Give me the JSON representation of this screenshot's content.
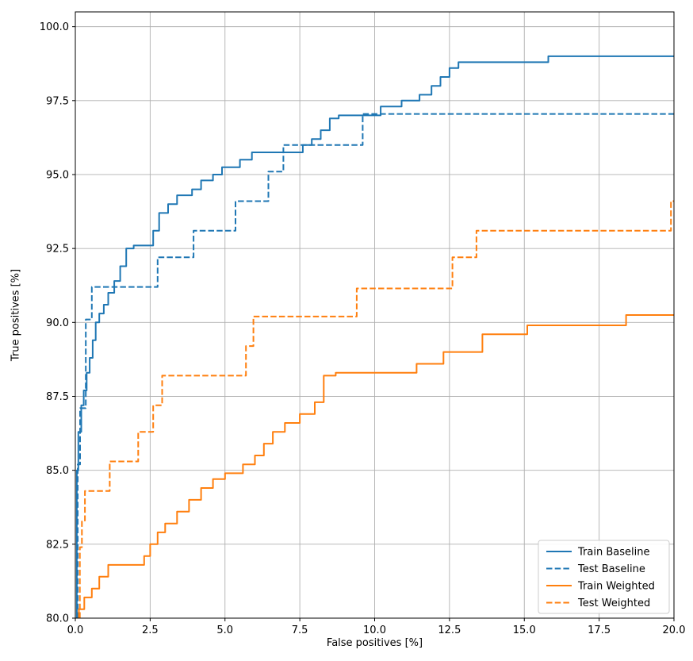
{
  "chart_data": {
    "type": "line",
    "title": "",
    "xlabel": "False positives [%]",
    "ylabel": "True positives [%]",
    "xlim": [
      0,
      20
    ],
    "ylim": [
      80,
      100.5
    ],
    "grid": true,
    "legend_position": "lower right",
    "xticks": [
      0,
      2.5,
      5,
      7.5,
      10,
      12.5,
      15,
      17.5,
      20
    ],
    "xtick_labels": [
      "0.0",
      "2.5",
      "5.0",
      "7.5",
      "10.0",
      "12.5",
      "15.0",
      "17.5",
      "20.0"
    ],
    "yticks": [
      80,
      82.5,
      85,
      87.5,
      90,
      92.5,
      95,
      97.5,
      100
    ],
    "ytick_labels": [
      "80.0",
      "82.5",
      "85.0",
      "87.5",
      "90.0",
      "92.5",
      "95.0",
      "97.5",
      "100.0"
    ],
    "colors": {
      "baseline": "#1f77b4",
      "weighted": "#ff7f0e",
      "grid": "#b0b0b0",
      "spine": "#000000",
      "legend_edge": "#cccccc"
    },
    "series": [
      {
        "name": "Train Baseline",
        "color": "#1f77b4",
        "dash": "solid",
        "points": [
          [
            0.05,
            80
          ],
          [
            0.05,
            85.0
          ],
          [
            0.1,
            85.0
          ],
          [
            0.1,
            86.3
          ],
          [
            0.2,
            86.3
          ],
          [
            0.2,
            87.2
          ],
          [
            0.28,
            87.2
          ],
          [
            0.28,
            87.7
          ],
          [
            0.38,
            87.7
          ],
          [
            0.38,
            88.3
          ],
          [
            0.48,
            88.3
          ],
          [
            0.48,
            88.8
          ],
          [
            0.58,
            88.8
          ],
          [
            0.58,
            89.4
          ],
          [
            0.68,
            89.4
          ],
          [
            0.68,
            90.0
          ],
          [
            0.8,
            90.0
          ],
          [
            0.8,
            90.3
          ],
          [
            0.95,
            90.3
          ],
          [
            0.95,
            90.6
          ],
          [
            1.1,
            90.6
          ],
          [
            1.1,
            91.0
          ],
          [
            1.3,
            91.0
          ],
          [
            1.3,
            91.4
          ],
          [
            1.5,
            91.4
          ],
          [
            1.5,
            91.9
          ],
          [
            1.7,
            91.9
          ],
          [
            1.7,
            92.5
          ],
          [
            1.95,
            92.5
          ],
          [
            1.95,
            92.6
          ],
          [
            2.6,
            92.6
          ],
          [
            2.6,
            93.1
          ],
          [
            2.8,
            93.1
          ],
          [
            2.8,
            93.7
          ],
          [
            3.1,
            93.7
          ],
          [
            3.1,
            94.0
          ],
          [
            3.4,
            94.0
          ],
          [
            3.4,
            94.3
          ],
          [
            3.9,
            94.3
          ],
          [
            3.9,
            94.5
          ],
          [
            4.2,
            94.5
          ],
          [
            4.2,
            94.8
          ],
          [
            4.6,
            94.8
          ],
          [
            4.6,
            95.0
          ],
          [
            4.9,
            95.0
          ],
          [
            4.9,
            95.25
          ],
          [
            5.5,
            95.25
          ],
          [
            5.5,
            95.5
          ],
          [
            5.9,
            95.5
          ],
          [
            5.9,
            95.75
          ],
          [
            7.6,
            95.75
          ],
          [
            7.6,
            96.0
          ],
          [
            7.9,
            96.0
          ],
          [
            7.9,
            96.2
          ],
          [
            8.2,
            96.2
          ],
          [
            8.2,
            96.5
          ],
          [
            8.5,
            96.5
          ],
          [
            8.5,
            96.9
          ],
          [
            8.8,
            96.9
          ],
          [
            8.8,
            97.0
          ],
          [
            10.2,
            97.0
          ],
          [
            10.2,
            97.3
          ],
          [
            10.9,
            97.3
          ],
          [
            10.9,
            97.5
          ],
          [
            11.5,
            97.5
          ],
          [
            11.5,
            97.7
          ],
          [
            11.9,
            97.7
          ],
          [
            11.9,
            98.0
          ],
          [
            12.2,
            98.0
          ],
          [
            12.2,
            98.3
          ],
          [
            12.5,
            98.3
          ],
          [
            12.5,
            98.6
          ],
          [
            12.8,
            98.6
          ],
          [
            12.8,
            98.8
          ],
          [
            15.8,
            98.8
          ],
          [
            15.8,
            99.0
          ],
          [
            20,
            99.0
          ]
        ]
      },
      {
        "name": "Test Baseline",
        "color": "#1f77b4",
        "dash": "dashed",
        "points": [
          [
            0.08,
            80
          ],
          [
            0.08,
            85.2
          ],
          [
            0.16,
            85.2
          ],
          [
            0.16,
            87.1
          ],
          [
            0.35,
            87.1
          ],
          [
            0.35,
            90.1
          ],
          [
            0.55,
            90.1
          ],
          [
            0.55,
            91.2
          ],
          [
            2.75,
            91.2
          ],
          [
            2.75,
            92.2
          ],
          [
            3.95,
            92.2
          ],
          [
            3.95,
            93.1
          ],
          [
            5.35,
            93.1
          ],
          [
            5.35,
            94.1
          ],
          [
            6.45,
            94.1
          ],
          [
            6.45,
            95.1
          ],
          [
            6.95,
            95.1
          ],
          [
            6.95,
            96.0
          ],
          [
            9.6,
            96.0
          ],
          [
            9.6,
            97.05
          ],
          [
            20,
            97.05
          ]
        ]
      },
      {
        "name": "Train Weighted",
        "color": "#ff7f0e",
        "dash": "solid",
        "points": [
          [
            0.12,
            80
          ],
          [
            0.12,
            80.3
          ],
          [
            0.3,
            80.3
          ],
          [
            0.3,
            80.7
          ],
          [
            0.55,
            80.7
          ],
          [
            0.55,
            81.0
          ],
          [
            0.8,
            81.0
          ],
          [
            0.8,
            81.4
          ],
          [
            1.1,
            81.4
          ],
          [
            1.1,
            81.8
          ],
          [
            2.3,
            81.8
          ],
          [
            2.3,
            82.1
          ],
          [
            2.5,
            82.1
          ],
          [
            2.5,
            82.5
          ],
          [
            2.75,
            82.5
          ],
          [
            2.75,
            82.9
          ],
          [
            3.0,
            82.9
          ],
          [
            3.0,
            83.2
          ],
          [
            3.4,
            83.2
          ],
          [
            3.4,
            83.6
          ],
          [
            3.8,
            83.6
          ],
          [
            3.8,
            84.0
          ],
          [
            4.2,
            84.0
          ],
          [
            4.2,
            84.4
          ],
          [
            4.6,
            84.4
          ],
          [
            4.6,
            84.7
          ],
          [
            5.0,
            84.7
          ],
          [
            5.0,
            84.9
          ],
          [
            5.6,
            84.9
          ],
          [
            5.6,
            85.2
          ],
          [
            6.0,
            85.2
          ],
          [
            6.0,
            85.5
          ],
          [
            6.3,
            85.5
          ],
          [
            6.3,
            85.9
          ],
          [
            6.6,
            85.9
          ],
          [
            6.6,
            86.3
          ],
          [
            7.0,
            86.3
          ],
          [
            7.0,
            86.6
          ],
          [
            7.5,
            86.6
          ],
          [
            7.5,
            86.9
          ],
          [
            8.0,
            86.9
          ],
          [
            8.0,
            87.3
          ],
          [
            8.3,
            87.3
          ],
          [
            8.3,
            88.2
          ],
          [
            8.7,
            88.2
          ],
          [
            8.7,
            88.3
          ],
          [
            11.4,
            88.3
          ],
          [
            11.4,
            88.6
          ],
          [
            12.3,
            88.6
          ],
          [
            12.3,
            89.0
          ],
          [
            13.6,
            89.0
          ],
          [
            13.6,
            89.6
          ],
          [
            15.1,
            89.6
          ],
          [
            15.1,
            89.9
          ],
          [
            18.4,
            89.9
          ],
          [
            18.4,
            90.25
          ],
          [
            20,
            90.25
          ]
        ]
      },
      {
        "name": "Test Weighted",
        "color": "#ff7f0e",
        "dash": "dashed",
        "points": [
          [
            0.15,
            80
          ],
          [
            0.15,
            82.4
          ],
          [
            0.22,
            82.4
          ],
          [
            0.22,
            83.3
          ],
          [
            0.32,
            83.3
          ],
          [
            0.32,
            84.3
          ],
          [
            1.15,
            84.3
          ],
          [
            1.15,
            85.3
          ],
          [
            2.1,
            85.3
          ],
          [
            2.1,
            86.3
          ],
          [
            2.6,
            86.3
          ],
          [
            2.6,
            87.2
          ],
          [
            2.9,
            87.2
          ],
          [
            2.9,
            88.2
          ],
          [
            5.7,
            88.2
          ],
          [
            5.7,
            89.2
          ],
          [
            5.95,
            89.2
          ],
          [
            5.95,
            90.2
          ],
          [
            9.4,
            90.2
          ],
          [
            9.4,
            91.15
          ],
          [
            12.6,
            91.15
          ],
          [
            12.6,
            92.2
          ],
          [
            13.4,
            92.2
          ],
          [
            13.4,
            93.1
          ],
          [
            19.9,
            93.1
          ],
          [
            19.9,
            94.1
          ],
          [
            20,
            94.1
          ]
        ]
      }
    ]
  }
}
